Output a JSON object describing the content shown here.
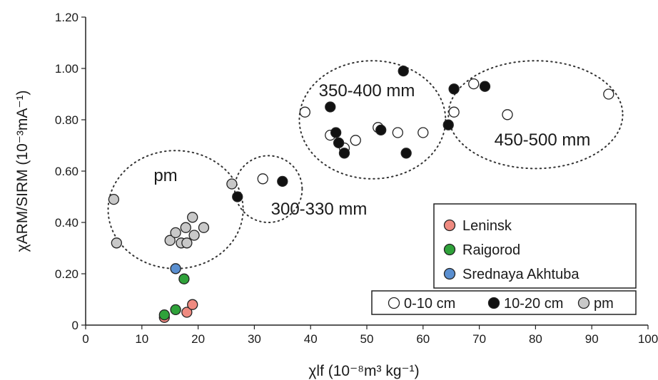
{
  "chart_data": {
    "type": "scatter",
    "xlabel": "χlf (10⁻⁸m³ kg⁻¹)",
    "ylabel": "χARM/SIRM (10⁻³mA⁻¹)",
    "xlim": [
      0,
      100
    ],
    "ylim": [
      0,
      1.2
    ],
    "xticks": [
      0,
      10,
      20,
      30,
      40,
      50,
      60,
      70,
      80,
      90,
      100
    ],
    "yticks": [
      "0",
      "0.20",
      "0.40",
      "0.60",
      "0.80",
      "1.00",
      "1.20"
    ],
    "grid": false,
    "legend_sites": {
      "placement": "right",
      "items": [
        {
          "label": "Leninsk",
          "color": "#ef8a80"
        },
        {
          "label": "Raigorod",
          "color": "#2fa23a"
        },
        {
          "label": "Srednaya Akhtuba",
          "color": "#5a8fd0"
        }
      ]
    },
    "legend_depth": {
      "placement": "bottom-right",
      "items": [
        {
          "label": "0-10 cm",
          "color": "#ffffff"
        },
        {
          "label": "10-20 cm",
          "color": "#111111"
        },
        {
          "label": "pm",
          "color": "#c8c8c8"
        }
      ]
    },
    "groups": [
      {
        "label": "pm",
        "cx": 16,
        "cy": 0.45,
        "rx": 12,
        "ry": 0.23
      },
      {
        "label": "300-330 mm",
        "cx": 32.5,
        "cy": 0.53,
        "rx": 6,
        "ry": 0.13
      },
      {
        "label": "350-400 mm",
        "cx": 51,
        "cy": 0.8,
        "rx": 13,
        "ry": 0.23
      },
      {
        "label": "450-500 mm",
        "cx": 80,
        "cy": 0.82,
        "rx": 15.5,
        "ry": 0.21
      }
    ],
    "series": [
      {
        "name": "0-10 cm",
        "color": "#ffffff",
        "points": [
          [
            31.5,
            0.57
          ],
          [
            39,
            0.83
          ],
          [
            43.5,
            0.74
          ],
          [
            46,
            0.69
          ],
          [
            48,
            0.72
          ],
          [
            52,
            0.77
          ],
          [
            55.5,
            0.75
          ],
          [
            60,
            0.75
          ],
          [
            65.5,
            0.83
          ],
          [
            69,
            0.94
          ],
          [
            75,
            0.82
          ],
          [
            93,
            0.9
          ]
        ]
      },
      {
        "name": "10-20 cm",
        "color": "#111111",
        "points": [
          [
            27,
            0.5
          ],
          [
            35,
            0.56
          ],
          [
            43.5,
            0.85
          ],
          [
            44.5,
            0.75
          ],
          [
            45,
            0.71
          ],
          [
            46,
            0.67
          ],
          [
            52.5,
            0.76
          ],
          [
            56.5,
            0.99
          ],
          [
            57,
            0.67
          ],
          [
            64.5,
            0.78
          ],
          [
            65.5,
            0.92
          ],
          [
            71,
            0.93
          ]
        ]
      },
      {
        "name": "pm",
        "color": "#c8c8c8",
        "points": [
          [
            5,
            0.49
          ],
          [
            5.5,
            0.32
          ],
          [
            15,
            0.33
          ],
          [
            16,
            0.36
          ],
          [
            17,
            0.32
          ],
          [
            17.8,
            0.38
          ],
          [
            18,
            0.32
          ],
          [
            19,
            0.42
          ],
          [
            19.3,
            0.35
          ],
          [
            21,
            0.38
          ],
          [
            26,
            0.55
          ]
        ]
      },
      {
        "name": "Leninsk",
        "color": "#ef8a80",
        "points": [
          [
            14,
            0.03
          ],
          [
            18,
            0.05
          ],
          [
            19,
            0.08
          ]
        ]
      },
      {
        "name": "Raigorod",
        "color": "#2fa23a",
        "points": [
          [
            14,
            0.04
          ],
          [
            16,
            0.06
          ],
          [
            17.5,
            0.18
          ]
        ]
      },
      {
        "name": "Srednaya Akhtuba",
        "color": "#5a8fd0",
        "points": [
          [
            16,
            0.22
          ]
        ]
      }
    ]
  }
}
